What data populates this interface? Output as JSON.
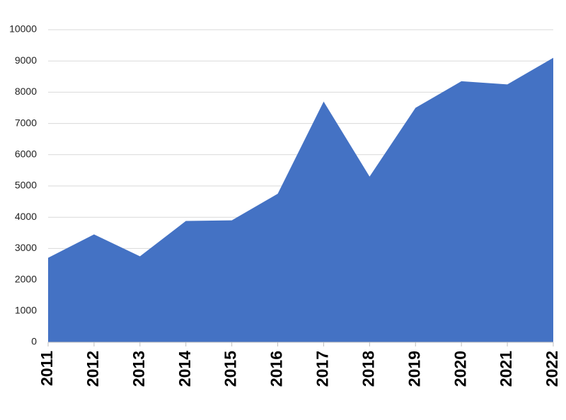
{
  "chart_data": {
    "type": "area",
    "categories": [
      "2011",
      "2012",
      "2013",
      "2014",
      "2015",
      "2016",
      "2017",
      "2018",
      "2019",
      "2020",
      "2021",
      "2022"
    ],
    "values": [
      2700,
      3450,
      2750,
      3880,
      3900,
      4750,
      7700,
      5300,
      7500,
      8350,
      8250,
      9100
    ],
    "color": "#4472c4",
    "ylim": [
      0,
      10000
    ],
    "yticks": [
      0,
      1000,
      2000,
      3000,
      4000,
      5000,
      6000,
      7000,
      8000,
      9000,
      10000
    ],
    "grid": true
  }
}
